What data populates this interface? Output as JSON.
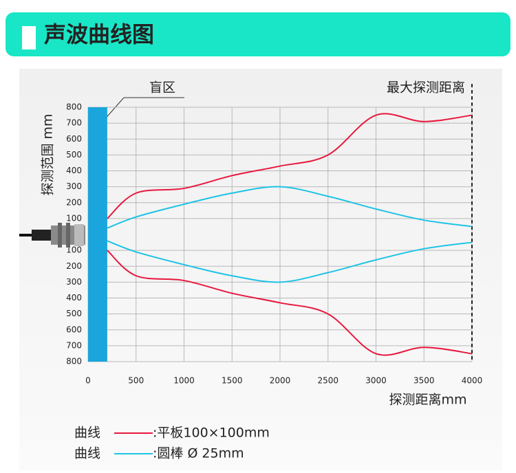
{
  "header": {
    "title": "声波曲线图"
  },
  "chart_data": {
    "type": "line",
    "y_label": "探测范围 mm",
    "x_label": "探测距离mm",
    "annotations": {
      "blind_zone_label": "盲区",
      "max_range_label": "最大探测距离"
    },
    "blind_zone": [
      0,
      200
    ],
    "blind_zone_color": "#1aa6dc",
    "max_range": 4000,
    "legend_prefix": "曲线",
    "x": [
      200,
      500,
      1000,
      1500,
      2000,
      2500,
      3000,
      3500,
      4000
    ],
    "series": [
      {
        "name": ":平板100×100mm",
        "color": "#e8173c",
        "values": [
          100,
          260,
          290,
          370,
          430,
          500,
          750,
          710,
          750
        ],
        "lower": [
          -100,
          -260,
          -290,
          -370,
          -430,
          -500,
          -750,
          -710,
          -750
        ]
      },
      {
        "name": ":圆棒 Ø 25mm",
        "color": "#1cc3e6",
        "values": [
          40,
          110,
          190,
          260,
          300,
          240,
          160,
          90,
          50
        ],
        "lower": [
          -40,
          -110,
          -190,
          -260,
          -300,
          -240,
          -160,
          -90,
          -50
        ]
      }
    ],
    "xlim": [
      0,
      4000
    ],
    "xticks": [
      0,
      500,
      1000,
      1500,
      2000,
      2500,
      3000,
      3500,
      4000
    ],
    "ylim": [
      -800,
      800
    ],
    "yticks": [
      800,
      700,
      600,
      500,
      400,
      300,
      200,
      100,
      {
        "value": -100,
        "label": "100"
      },
      {
        "value": -200,
        "label": "200"
      },
      {
        "value": -300,
        "label": "300"
      },
      {
        "value": -400,
        "label": "400"
      },
      {
        "value": -500,
        "label": "500"
      },
      {
        "value": -600,
        "label": "600"
      },
      {
        "value": -700,
        "label": "700"
      },
      {
        "value": -800,
        "label": "800"
      }
    ],
    "grid": true
  }
}
